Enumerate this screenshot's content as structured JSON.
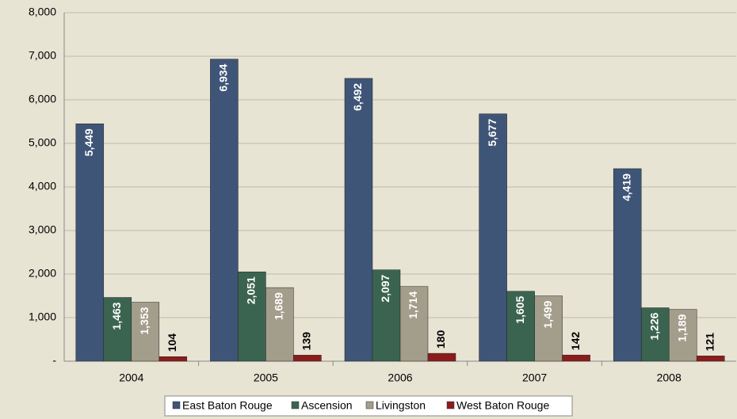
{
  "chart_data": {
    "type": "bar",
    "categories": [
      "2004",
      "2005",
      "2006",
      "2007",
      "2008"
    ],
    "series": [
      {
        "name": "East Baton Rouge",
        "color": "#3f5577",
        "values": [
          5449,
          6934,
          6492,
          5677,
          4419
        ],
        "value_labels": [
          "5,449",
          "6,934",
          "6,492",
          "5,677",
          "4,419"
        ]
      },
      {
        "name": "Ascension",
        "color": "#3b6450",
        "values": [
          1463,
          2051,
          2097,
          1605,
          1226
        ],
        "value_labels": [
          "1,463",
          "2,051",
          "2,097",
          "1,605",
          "1,226"
        ]
      },
      {
        "name": "Livingston",
        "color": "#a39d8b",
        "values": [
          1353,
          1689,
          1714,
          1499,
          1189
        ],
        "value_labels": [
          "1,353",
          "1,689",
          "1,714",
          "1,499",
          "1,189"
        ]
      },
      {
        "name": "West Baton Rouge",
        "color": "#8c1c1c",
        "values": [
          104,
          139,
          180,
          142,
          121
        ]
      }
    ],
    "ylim": [
      0,
      8000
    ],
    "yticks": [
      {
        "value": 0,
        "label": "-"
      },
      {
        "value": 1000,
        "label": "1,000"
      },
      {
        "value": 2000,
        "label": "2,000"
      },
      {
        "value": 3000,
        "label": "3,000"
      },
      {
        "value": 4000,
        "label": "4,000"
      },
      {
        "value": 5000,
        "label": "5,000"
      },
      {
        "value": 6000,
        "label": "6,000"
      },
      {
        "value": 7000,
        "label": "7,000"
      },
      {
        "value": 8000,
        "label": "8,000"
      }
    ],
    "grid": true,
    "legend": "bottom"
  }
}
